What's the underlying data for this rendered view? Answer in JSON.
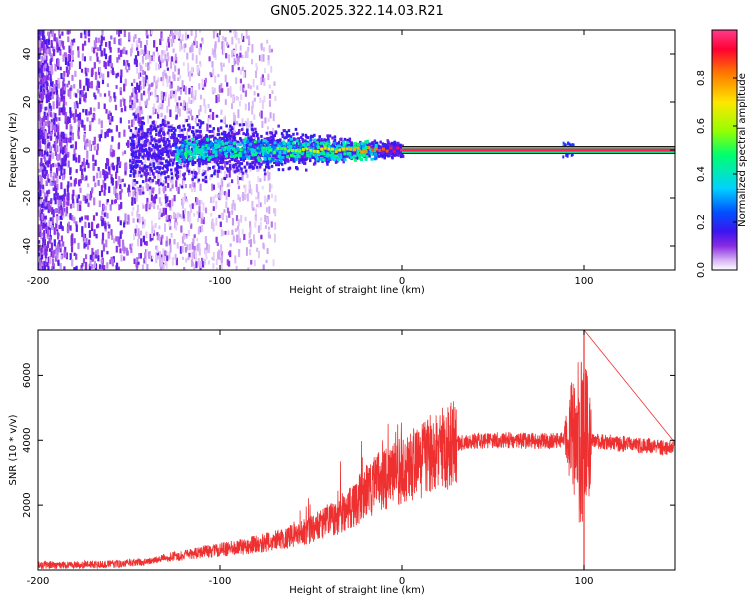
{
  "title": "GN05.2025.322.14.03.R21",
  "chart_data": [
    {
      "type": "heatmap",
      "name": "spectrogram",
      "xlabel": "Height of straight line (km)",
      "ylabel": "Frequency (Hz)",
      "xlim": [
        -200,
        150
      ],
      "ylim": [
        -50,
        50
      ],
      "xticks": [
        -200,
        -100,
        0,
        100
      ],
      "xtick_labels": [
        "-200",
        "-100",
        "0",
        "100"
      ],
      "yticks": [
        -40,
        -20,
        0,
        20,
        40
      ],
      "ytick_labels": [
        "-40",
        "-20",
        "0",
        "20",
        "40"
      ],
      "colorbar": {
        "label": "Normalized spectral amplitude",
        "range": [
          0,
          1
        ],
        "ticks": [
          0,
          0.2,
          0.4,
          0.6,
          0.8
        ],
        "tick_labels": [
          "0.0",
          "0.2",
          "0.4",
          "0.6",
          "0.8"
        ],
        "colormap": [
          "#ffffff",
          "#d7b4f5",
          "#8a2be2",
          "#3c14f0",
          "#0050ff",
          "#00d2ff",
          "#00ff6e",
          "#96ff00",
          "#ffe600",
          "#ff7800",
          "#ff0032",
          "#ff3c8c"
        ]
      },
      "features": {
        "carrier_line": {
          "frequency": 0,
          "x_start": 0,
          "x_end": 150,
          "amplitude": 1.0
        },
        "cluster_core": {
          "x_start": -150,
          "x_end": 0,
          "frequency": 0
        },
        "noise_region": {
          "x_start": -200,
          "x_end": -75
        }
      }
    },
    {
      "type": "line",
      "name": "snr",
      "xlabel": "Height of straight line (km)",
      "ylabel": "SNR (10 * v/v)",
      "xlim": [
        -200,
        150
      ],
      "ylim": [
        0,
        7400
      ],
      "xticks": [
        -200,
        -100,
        0,
        100
      ],
      "xtick_labels": [
        "-200",
        "-100",
        "0",
        "100"
      ],
      "yticks": [
        2000,
        4000,
        6000
      ],
      "ytick_labels": [
        "2000",
        "4000",
        "6000"
      ],
      "color": "#ee3030",
      "series": [
        {
          "name": "SNR",
          "x": [
            -200,
            -180,
            -160,
            -140,
            -130,
            -120,
            -110,
            -100,
            -90,
            -80,
            -70,
            -60,
            -50,
            -40,
            -30,
            -25,
            -20,
            -15,
            -10,
            -5,
            0,
            10,
            20,
            30,
            40,
            50,
            60,
            70,
            80,
            85,
            90,
            95,
            100,
            105,
            110,
            120,
            130,
            140,
            150
          ],
          "values": [
            150,
            160,
            180,
            250,
            380,
            450,
            550,
            620,
            700,
            800,
            900,
            1050,
            1250,
            1500,
            1850,
            2100,
            2400,
            2650,
            2800,
            2900,
            3050,
            3350,
            3700,
            3900,
            3980,
            4000,
            4000,
            3980,
            3980,
            4000,
            4050,
            4100,
            4000,
            4000,
            3950,
            3900,
            3850,
            3800,
            3750
          ]
        }
      ],
      "annotations": {
        "spike_peak": {
          "x": 100,
          "y": 7400
        },
        "spike_low": {
          "x": 100,
          "y": 0
        }
      }
    }
  ]
}
